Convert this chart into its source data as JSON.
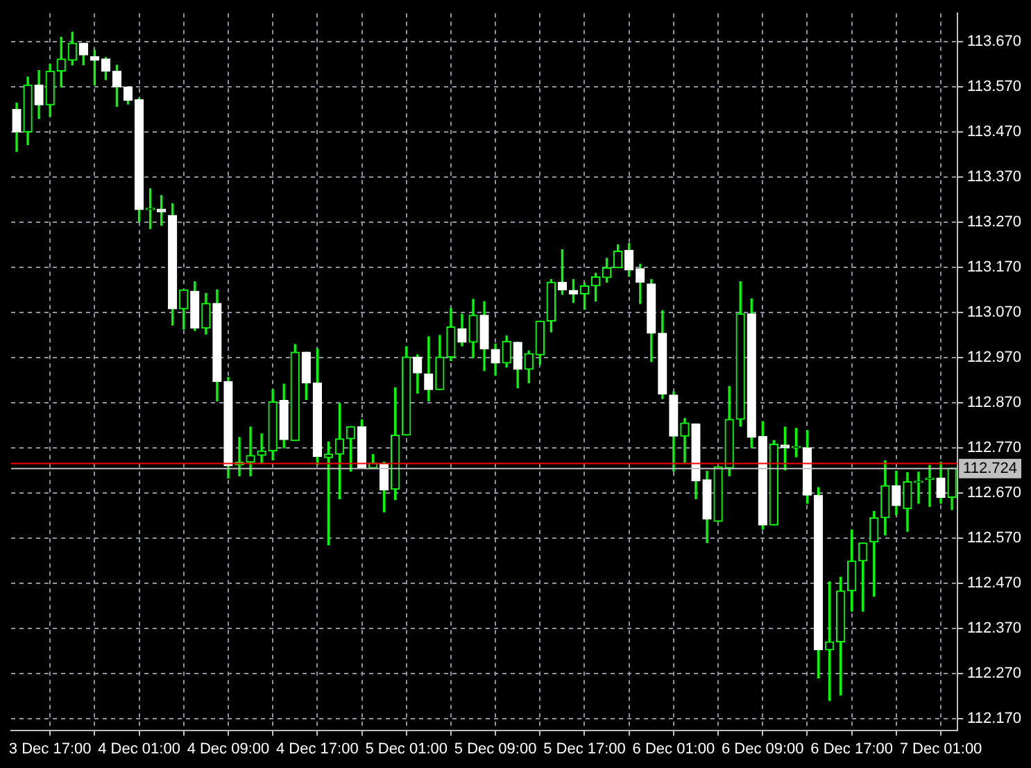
{
  "chart_data": {
    "type": "candlestick",
    "categories": [
      null,
      null,
      null,
      "3 Dec 17:00",
      null,
      null,
      null,
      null,
      null,
      null,
      null,
      "4 Dec 01:00",
      null,
      null,
      null,
      null,
      null,
      null,
      null,
      "4 Dec 09:00",
      null,
      null,
      null,
      null,
      null,
      null,
      null,
      "4 Dec 17:00",
      null,
      null,
      null,
      null,
      null,
      null,
      null,
      "5 Dec 01:00",
      null,
      null,
      null,
      null,
      null,
      null,
      null,
      "5 Dec 09:00",
      null,
      null,
      null,
      null,
      null,
      null,
      null,
      "5 Dec 17:00",
      null,
      null,
      null,
      null,
      null,
      null,
      null,
      "6 Dec 01:00",
      null,
      null,
      null,
      null,
      null,
      null,
      null,
      "6 Dec 09:00",
      null,
      null,
      null,
      null,
      null,
      null,
      null,
      "6 Dec 17:00",
      null,
      null,
      null,
      null,
      null,
      null,
      null,
      "7 Dec 01:00",
      null
    ],
    "ohlc": [
      [
        113.52,
        113.534,
        113.427,
        113.47
      ],
      [
        113.47,
        113.592,
        113.442,
        113.574
      ],
      [
        113.574,
        113.606,
        113.5,
        113.53
      ],
      [
        113.53,
        113.62,
        113.505,
        113.605
      ],
      [
        113.605,
        113.68,
        113.57,
        113.632
      ],
      [
        113.629,
        113.691,
        113.619,
        113.667
      ],
      [
        113.667,
        113.667,
        113.619,
        113.641
      ],
      [
        113.637,
        113.651,
        113.574,
        113.629
      ],
      [
        113.632,
        113.635,
        113.586,
        113.605
      ],
      [
        113.605,
        113.618,
        113.527,
        113.57
      ],
      [
        113.57,
        113.57,
        113.532,
        113.54
      ],
      [
        113.542,
        113.545,
        113.271,
        113.298
      ],
      [
        113.298,
        113.344,
        113.256,
        113.298
      ],
      [
        113.299,
        113.329,
        113.263,
        113.293
      ],
      [
        113.285,
        113.311,
        113.042,
        113.078
      ],
      [
        113.078,
        113.12,
        113.033,
        113.12
      ],
      [
        113.117,
        113.138,
        113.03,
        113.035
      ],
      [
        113.035,
        113.112,
        113.022,
        113.09
      ],
      [
        113.09,
        113.12,
        112.874,
        112.917
      ],
      [
        112.917,
        112.926,
        112.703,
        112.73
      ],
      [
        112.732,
        112.793,
        112.708,
        112.738
      ],
      [
        112.738,
        112.816,
        112.708,
        112.753
      ],
      [
        112.753,
        112.801,
        112.735,
        112.763
      ],
      [
        112.763,
        112.899,
        112.743,
        112.872
      ],
      [
        112.875,
        112.911,
        112.77,
        112.788
      ],
      [
        112.786,
        112.999,
        112.786,
        112.982
      ],
      [
        112.982,
        112.982,
        112.877,
        112.914
      ],
      [
        112.914,
        112.989,
        112.733,
        112.751
      ],
      [
        112.748,
        112.783,
        112.555,
        112.756
      ],
      [
        112.756,
        112.868,
        112.657,
        112.79
      ],
      [
        112.79,
        112.817,
        112.718,
        112.817
      ],
      [
        112.817,
        112.832,
        112.725,
        112.725
      ],
      [
        112.725,
        112.755,
        112.725,
        112.736
      ],
      [
        112.735,
        112.738,
        112.628,
        112.676
      ],
      [
        112.678,
        112.903,
        112.655,
        112.798
      ],
      [
        112.798,
        112.994,
        112.798,
        112.971
      ],
      [
        112.971,
        112.976,
        112.891,
        112.936
      ],
      [
        112.934,
        113.016,
        112.874,
        112.899
      ],
      [
        112.899,
        113.019,
        112.899,
        112.971
      ],
      [
        112.971,
        113.079,
        112.963,
        113.038
      ],
      [
        113.034,
        113.066,
        112.996,
        113.004
      ],
      [
        113.004,
        113.099,
        112.97,
        113.064
      ],
      [
        113.064,
        113.094,
        112.941,
        112.989
      ],
      [
        112.988,
        113.0,
        112.931,
        112.958
      ],
      [
        112.958,
        113.018,
        112.949,
        113.006
      ],
      [
        113.004,
        113.004,
        112.903,
        112.944
      ],
      [
        112.944,
        112.985,
        112.914,
        112.979
      ],
      [
        112.976,
        113.051,
        112.955,
        113.051
      ],
      [
        113.051,
        113.143,
        113.027,
        113.137
      ],
      [
        113.137,
        113.209,
        113.11,
        113.12
      ],
      [
        113.119,
        113.143,
        113.092,
        113.111
      ],
      [
        113.111,
        113.135,
        113.077,
        113.129
      ],
      [
        113.129,
        113.157,
        113.095,
        113.149
      ],
      [
        113.147,
        113.19,
        113.137,
        113.169
      ],
      [
        113.169,
        113.22,
        113.169,
        113.206
      ],
      [
        113.208,
        113.223,
        113.15,
        113.164
      ],
      [
        113.167,
        113.177,
        113.09,
        113.137
      ],
      [
        113.133,
        113.143,
        112.961,
        113.024
      ],
      [
        113.024,
        113.074,
        112.879,
        112.889
      ],
      [
        112.887,
        112.894,
        112.718,
        112.796
      ],
      [
        112.796,
        112.835,
        112.738,
        112.825
      ],
      [
        112.823,
        112.823,
        112.657,
        112.697
      ],
      [
        112.699,
        112.718,
        112.56,
        112.612
      ],
      [
        112.607,
        112.728,
        112.607,
        112.728
      ],
      [
        112.725,
        112.906,
        112.708,
        112.833
      ],
      [
        112.833,
        113.138,
        112.818,
        113.067
      ],
      [
        113.067,
        113.1,
        112.77,
        112.793
      ],
      [
        112.795,
        112.828,
        112.59,
        112.599
      ],
      [
        112.599,
        112.786,
        112.599,
        112.778
      ],
      [
        112.776,
        112.816,
        112.721,
        112.77
      ],
      [
        112.77,
        112.813,
        112.75,
        112.77
      ],
      [
        112.77,
        112.808,
        112.647,
        112.665
      ],
      [
        112.665,
        112.682,
        112.26,
        112.322
      ],
      [
        112.322,
        112.473,
        112.21,
        112.34
      ],
      [
        112.34,
        112.483,
        112.222,
        112.453
      ],
      [
        112.453,
        112.588,
        112.408,
        112.519
      ],
      [
        112.519,
        112.559,
        112.408,
        112.559
      ],
      [
        112.561,
        112.629,
        112.441,
        112.615
      ],
      [
        112.615,
        112.741,
        112.577,
        112.686
      ],
      [
        112.686,
        112.718,
        112.622,
        112.642
      ],
      [
        112.635,
        112.715,
        112.585,
        112.695
      ],
      [
        112.693,
        112.716,
        112.647,
        112.693
      ],
      [
        112.7,
        112.731,
        112.64,
        112.7
      ],
      [
        112.703,
        112.738,
        112.647,
        112.66
      ],
      [
        112.66,
        112.725,
        112.633,
        112.725
      ]
    ],
    "color": "#00ff00",
    "colors": [
      "#ffffff",
      "#00ff00",
      "#ffffff",
      "#00ff00",
      "#00ff00",
      "#00ff00",
      "#ffffff",
      "#ffffff",
      "#ffffff",
      "#ffffff",
      "#ffffff",
      "#ffffff",
      "#00ff00",
      "#ffffff",
      "#ffffff",
      "#00ff00",
      "#ffffff",
      "#00ff00",
      "#ffffff",
      "#ffffff",
      "#00ff00",
      "#00ff00",
      "#00ff00",
      "#00ff00",
      "#ffffff",
      "#00ff00",
      "#ffffff",
      "#ffffff",
      "#00ff00",
      "#00ff00",
      "#00ff00",
      "#ffffff",
      "#00ff00",
      "#ffffff",
      "#00ff00",
      "#00ff00",
      "#ffffff",
      "#ffffff",
      "#00ff00",
      "#00ff00",
      "#ffffff",
      "#00ff00",
      "#ffffff",
      "#ffffff",
      "#00ff00",
      "#ffffff",
      "#00ff00",
      "#00ff00",
      "#00ff00",
      "#ffffff",
      "#ffffff",
      "#00ff00",
      "#00ff00",
      "#00ff00",
      "#00ff00",
      "#ffffff",
      "#ffffff",
      "#ffffff",
      "#ffffff",
      "#ffffff",
      "#00ff00",
      "#ffffff",
      "#ffffff",
      "#00ff00",
      "#00ff00",
      "#00ff00",
      "#ffffff",
      "#ffffff",
      "#00ff00",
      "#ffffff",
      "#00ff00",
      "#ffffff",
      "#ffffff",
      "#00ff00",
      "#00ff00",
      "#00ff00",
      "#00ff00",
      "#00ff00",
      "#00ff00",
      "#ffffff",
      "#00ff00",
      "#00ff00",
      "#00ff00",
      "#ffffff",
      "#00ff00"
    ],
    "ylim": [
      112.144,
      113.733
    ],
    "yticks": [
      {
        "value": 112.17,
        "label": "112.170"
      },
      {
        "value": 112.27,
        "label": "112.270"
      },
      {
        "value": 112.37,
        "label": "112.370"
      },
      {
        "value": 112.47,
        "label": "112.470"
      },
      {
        "value": 112.57,
        "label": "112.570"
      },
      {
        "value": 112.67,
        "label": "112.670"
      },
      {
        "value": 112.77,
        "label": "112.770"
      },
      {
        "value": 112.87,
        "label": "112.870"
      },
      {
        "value": 112.97,
        "label": "112.970"
      },
      {
        "value": 113.07,
        "label": "113.070"
      },
      {
        "value": 113.17,
        "label": "113.170"
      },
      {
        "value": 113.27,
        "label": "113.270"
      },
      {
        "value": 113.37,
        "label": "113.370"
      },
      {
        "value": 113.47,
        "label": "113.470"
      },
      {
        "value": 113.57,
        "label": "113.570"
      },
      {
        "value": 113.67,
        "label": "113.670"
      }
    ],
    "ref_lines": [
      {
        "axis": "y",
        "value": 112.735,
        "color": "#ff0000"
      },
      {
        "axis": "y",
        "value": 112.724,
        "label": "112.724",
        "color": "#c0c0c0"
      }
    ],
    "grid": true,
    "legend": false
  }
}
